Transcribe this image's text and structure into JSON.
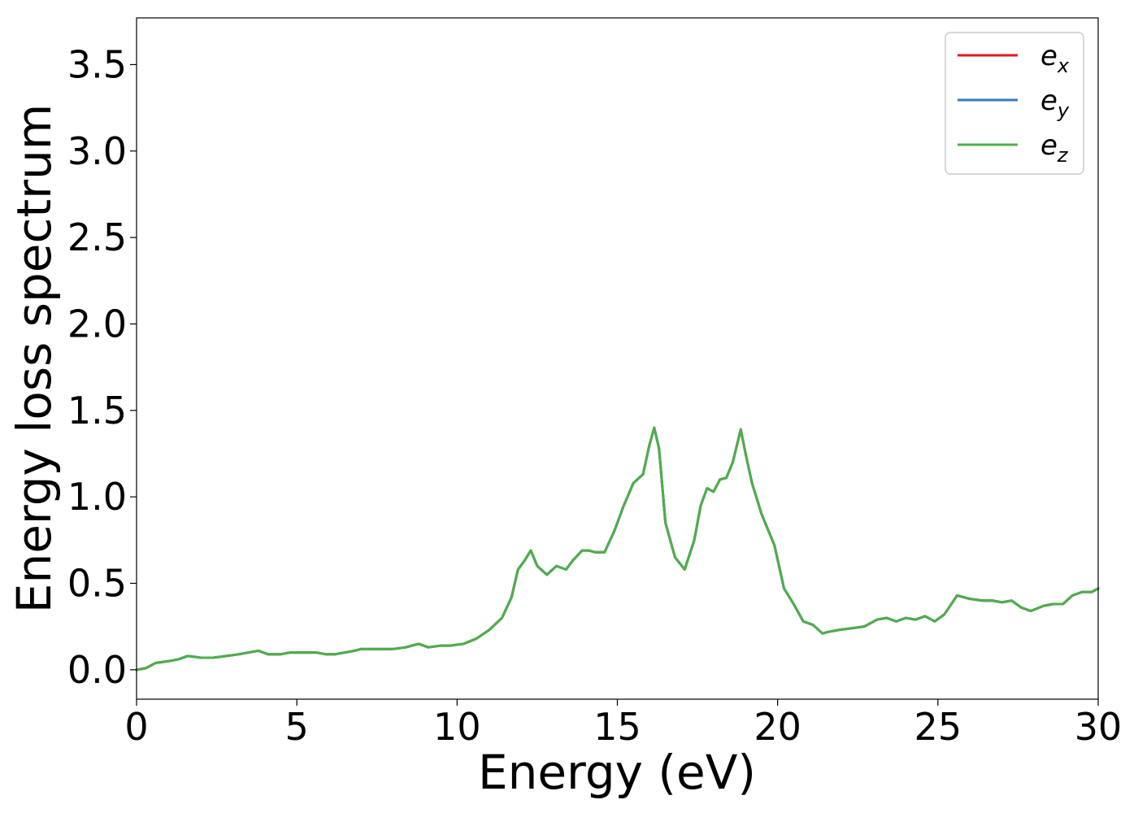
{
  "chart_data": {
    "type": "line",
    "xlabel": "Energy (eV)",
    "ylabel": "Energy loss spectrum",
    "xlim": [
      0,
      30
    ],
    "ylim": [
      -0.17,
      3.77
    ],
    "xticks": [
      0,
      5,
      10,
      15,
      20,
      25,
      30
    ],
    "yticks": [
      0.0,
      0.5,
      1.0,
      1.5,
      2.0,
      2.5,
      3.0,
      3.5
    ],
    "xtick_labels": [
      "0",
      "5",
      "10",
      "15",
      "20",
      "25",
      "30"
    ],
    "ytick_labels": [
      "0.0",
      "0.5",
      "1.0",
      "1.5",
      "2.0",
      "2.5",
      "3.0",
      "3.5"
    ],
    "grid": false,
    "legend_position": "top-right",
    "x": [
      0,
      0.3,
      0.6,
      1.0,
      1.3,
      1.6,
      2.0,
      2.4,
      2.8,
      3.2,
      3.5,
      3.8,
      4.1,
      4.5,
      4.8,
      5.0,
      5.3,
      5.6,
      5.9,
      6.2,
      6.5,
      6.8,
      7.0,
      7.3,
      7.6,
      8.0,
      8.4,
      8.8,
      9.1,
      9.5,
      9.8,
      10.2,
      10.6,
      11.0,
      11.4,
      11.7,
      11.9,
      12.1,
      12.3,
      12.5,
      12.8,
      13.1,
      13.4,
      13.6,
      13.9,
      14.1,
      14.3,
      14.6,
      14.9,
      15.2,
      15.5,
      15.8,
      16.0,
      16.15,
      16.3,
      16.5,
      16.8,
      17.1,
      17.4,
      17.6,
      17.8,
      18.0,
      18.2,
      18.4,
      18.6,
      18.85,
      19.0,
      19.2,
      19.5,
      19.9,
      20.2,
      20.5,
      20.8,
      21.1,
      21.4,
      21.6,
      21.9,
      22.3,
      22.7,
      23.1,
      23.4,
      23.7,
      24.0,
      24.3,
      24.6,
      24.9,
      25.2,
      25.6,
      26.0,
      26.4,
      26.7,
      27.0,
      27.3,
      27.6,
      27.9,
      28.3,
      28.6,
      28.9,
      29.2,
      29.5,
      29.8,
      30.0
    ],
    "series": [
      {
        "name": "e_x",
        "color": "#e41a1c",
        "values": [
          0.0,
          0.01,
          0.04,
          0.05,
          0.06,
          0.08,
          0.07,
          0.07,
          0.08,
          0.09,
          0.1,
          0.11,
          0.09,
          0.09,
          0.1,
          0.1,
          0.1,
          0.1,
          0.09,
          0.09,
          0.1,
          0.11,
          0.12,
          0.12,
          0.12,
          0.12,
          0.13,
          0.15,
          0.13,
          0.14,
          0.14,
          0.15,
          0.18,
          0.23,
          0.3,
          0.42,
          0.58,
          0.63,
          0.69,
          0.6,
          0.55,
          0.6,
          0.58,
          0.63,
          0.69,
          0.69,
          0.68,
          0.68,
          0.8,
          0.95,
          1.08,
          1.13,
          1.3,
          1.4,
          1.28,
          0.85,
          0.65,
          0.58,
          0.75,
          0.95,
          1.05,
          1.03,
          1.1,
          1.11,
          1.2,
          1.39,
          1.25,
          1.08,
          0.9,
          0.72,
          0.47,
          0.38,
          0.28,
          0.26,
          0.21,
          0.22,
          0.23,
          0.24,
          0.25,
          0.29,
          0.3,
          0.28,
          0.3,
          0.29,
          0.31,
          0.28,
          0.32,
          0.43,
          0.41,
          0.4,
          0.4,
          0.39,
          0.4,
          0.36,
          0.34,
          0.37,
          0.38,
          0.38,
          0.43,
          0.45,
          0.45,
          0.47
        ]
      },
      {
        "name": "e_y",
        "color": "#377eb8",
        "values": [
          0.0,
          0.01,
          0.04,
          0.05,
          0.06,
          0.08,
          0.07,
          0.07,
          0.08,
          0.09,
          0.1,
          0.11,
          0.09,
          0.09,
          0.1,
          0.1,
          0.1,
          0.1,
          0.09,
          0.09,
          0.1,
          0.11,
          0.12,
          0.12,
          0.12,
          0.12,
          0.13,
          0.15,
          0.13,
          0.14,
          0.14,
          0.15,
          0.18,
          0.23,
          0.3,
          0.42,
          0.58,
          0.63,
          0.69,
          0.6,
          0.55,
          0.6,
          0.58,
          0.63,
          0.69,
          0.69,
          0.68,
          0.68,
          0.8,
          0.95,
          1.08,
          1.13,
          1.3,
          1.4,
          1.28,
          0.85,
          0.65,
          0.58,
          0.75,
          0.95,
          1.05,
          1.03,
          1.1,
          1.11,
          1.2,
          1.39,
          1.25,
          1.08,
          0.9,
          0.72,
          0.47,
          0.38,
          0.28,
          0.26,
          0.21,
          0.22,
          0.23,
          0.24,
          0.25,
          0.29,
          0.3,
          0.28,
          0.3,
          0.29,
          0.31,
          0.28,
          0.32,
          0.43,
          0.41,
          0.4,
          0.4,
          0.39,
          0.4,
          0.36,
          0.34,
          0.37,
          0.38,
          0.38,
          0.43,
          0.45,
          0.45,
          0.47
        ]
      },
      {
        "name": "e_z",
        "color": "#4daf4a",
        "values": [
          0.0,
          0.01,
          0.04,
          0.05,
          0.06,
          0.08,
          0.07,
          0.07,
          0.08,
          0.09,
          0.1,
          0.11,
          0.09,
          0.09,
          0.1,
          0.1,
          0.1,
          0.1,
          0.09,
          0.09,
          0.1,
          0.11,
          0.12,
          0.12,
          0.12,
          0.12,
          0.13,
          0.15,
          0.13,
          0.14,
          0.14,
          0.15,
          0.18,
          0.23,
          0.3,
          0.42,
          0.58,
          0.63,
          0.69,
          0.6,
          0.55,
          0.6,
          0.58,
          0.63,
          0.69,
          0.69,
          0.68,
          0.68,
          0.8,
          0.95,
          1.08,
          1.13,
          1.3,
          1.4,
          1.28,
          0.85,
          0.65,
          0.58,
          0.75,
          0.95,
          1.05,
          1.03,
          1.1,
          1.11,
          1.2,
          1.39,
          1.25,
          1.08,
          0.9,
          0.72,
          0.47,
          0.38,
          0.28,
          0.26,
          0.21,
          0.22,
          0.23,
          0.24,
          0.25,
          0.29,
          0.3,
          0.28,
          0.3,
          0.29,
          0.31,
          0.28,
          0.32,
          0.43,
          0.41,
          0.4,
          0.4,
          0.39,
          0.4,
          0.36,
          0.34,
          0.37,
          0.38,
          0.38,
          0.43,
          0.45,
          0.45,
          0.47
        ]
      }
    ],
    "legend": [
      {
        "base": "e",
        "sub": "x"
      },
      {
        "base": "e",
        "sub": "y"
      },
      {
        "base": "e",
        "sub": "z"
      }
    ]
  }
}
